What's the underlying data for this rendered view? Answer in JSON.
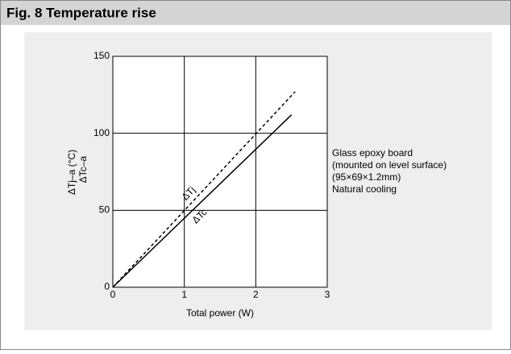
{
  "header": {
    "title": "Fig. 8  Temperature rise"
  },
  "chart_data": {
    "type": "line",
    "xlabel": "Total power (W)",
    "ylabel": [
      "ΔTj–a  (°C)",
      "ΔTc–a"
    ],
    "xlim": [
      0,
      3
    ],
    "xticks": [
      0,
      1,
      2,
      3
    ],
    "ylim": [
      0,
      150
    ],
    "yticks": [
      0,
      50,
      100,
      150
    ],
    "grid": true,
    "series": [
      {
        "name": "ΔTj",
        "color": "#000000",
        "style": "dashed",
        "x": [
          0,
          2.55
        ],
        "values": [
          0,
          127
        ]
      },
      {
        "name": "ΔTc",
        "color": "#000000",
        "style": "solid",
        "x": [
          0,
          2.5
        ],
        "values": [
          0,
          112
        ]
      }
    ],
    "annotation": [
      "Glass epoxy board",
      "(mounted on level surface)",
      "(95×69×1.2mm)",
      "Natural cooling"
    ]
  }
}
